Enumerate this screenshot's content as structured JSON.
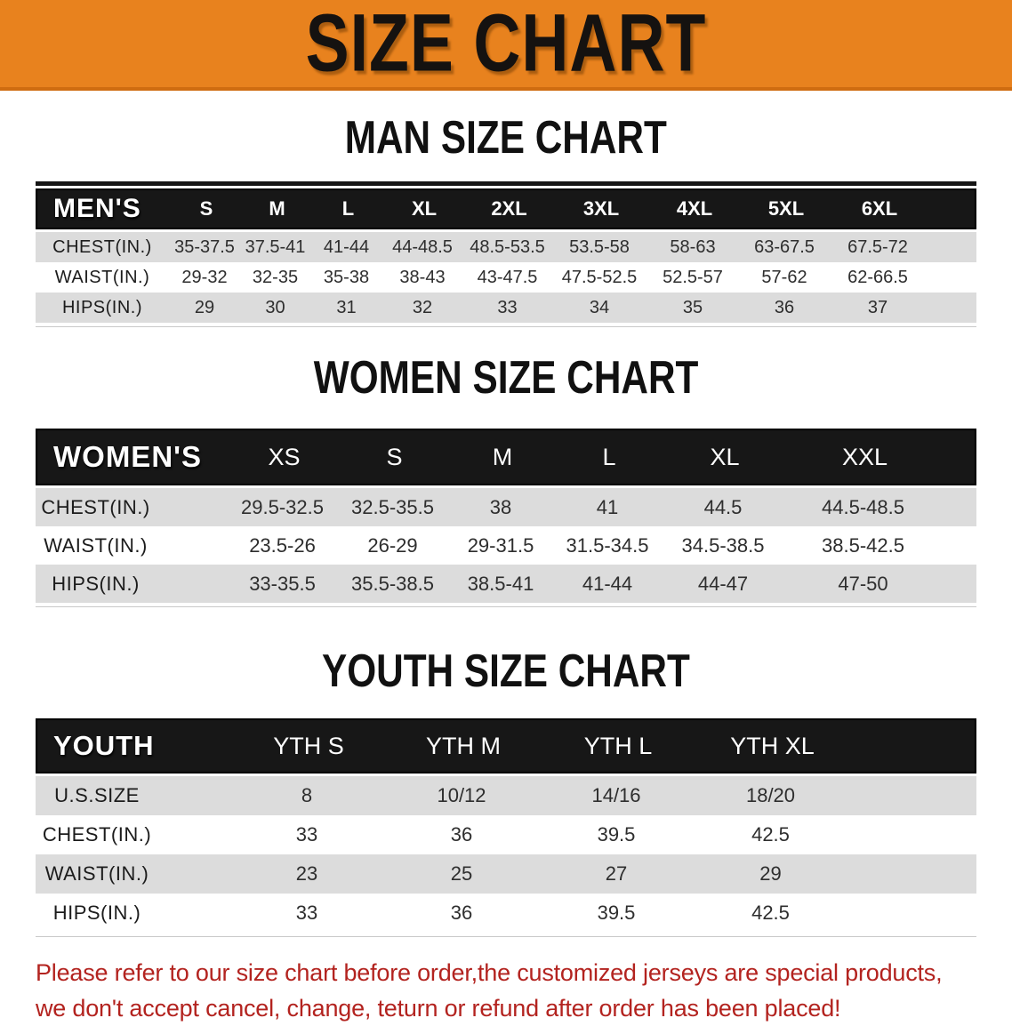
{
  "banner": {
    "title": "SIZE CHART"
  },
  "colors": {
    "banner_bg": "#e8821e",
    "banner_border": "#cf6c10",
    "header_bar_bg": "#171717",
    "row_gray": "#dcdcdc",
    "note_red": "#b3231f"
  },
  "man_section": {
    "heading": "MAN SIZE CHART",
    "table": {
      "corner": "MEN'S",
      "sizes": [
        "S",
        "M",
        "L",
        "XL",
        "2XL",
        "3XL",
        "4XL",
        "5XL",
        "6XL"
      ],
      "rows": [
        {
          "label": "CHEST(IN.)",
          "values": [
            "35-37.5",
            "37.5-41",
            "41-44",
            "44-48.5",
            "48.5-53.5",
            "53.5-58",
            "58-63",
            "63-67.5",
            "67.5-72"
          ]
        },
        {
          "label": "WAIST(IN.)",
          "values": [
            "29-32",
            "32-35",
            "35-38",
            "38-43",
            "43-47.5",
            "47.5-52.5",
            "52.5-57",
            "57-62",
            "62-66.5"
          ]
        },
        {
          "label": "HIPS(IN.)",
          "values": [
            "29",
            "30",
            "31",
            "32",
            "33",
            "34",
            "35",
            "36",
            "37"
          ]
        }
      ]
    }
  },
  "women_section": {
    "heading": "WOMEN SIZE CHART",
    "table": {
      "corner": "WOMEN'S",
      "sizes": [
        "XS",
        "S",
        "M",
        "L",
        "XL",
        "XXL"
      ],
      "rows": [
        {
          "label": "CHEST(IN.)",
          "values": [
            "29.5-32.5",
            "32.5-35.5",
            "38",
            "41",
            "44.5",
            "44.5-48.5"
          ]
        },
        {
          "label": "WAIST(IN.)",
          "values": [
            "23.5-26",
            "26-29",
            "29-31.5",
            "31.5-34.5",
            "34.5-38.5",
            "38.5-42.5"
          ]
        },
        {
          "label": "HIPS(IN.)",
          "values": [
            "33-35.5",
            "35.5-38.5",
            "38.5-41",
            "41-44",
            "44-47",
            "47-50"
          ]
        }
      ]
    }
  },
  "youth_section": {
    "heading": "YOUTH SIZE CHART",
    "table": {
      "corner": "YOUTH",
      "sizes": [
        "YTH S",
        "YTH M",
        "YTH L",
        "YTH XL"
      ],
      "rows": [
        {
          "label": "U.S.SIZE",
          "values": [
            "8",
            "10/12",
            "14/16",
            "18/20"
          ]
        },
        {
          "label": "CHEST(IN.)",
          "values": [
            "33",
            "36",
            "39.5",
            "42.5"
          ]
        },
        {
          "label": "WAIST(IN.)",
          "values": [
            "23",
            "25",
            "27",
            "29"
          ]
        },
        {
          "label": "HIPS(IN.)",
          "values": [
            "33",
            "36",
            "39.5",
            "42.5"
          ]
        }
      ]
    }
  },
  "note": {
    "line1": "Please refer to our size chart before order,the customized jerseys are special products,",
    "line2": "we don't accept cancel, change, teturn or refund after order has been placed!"
  }
}
